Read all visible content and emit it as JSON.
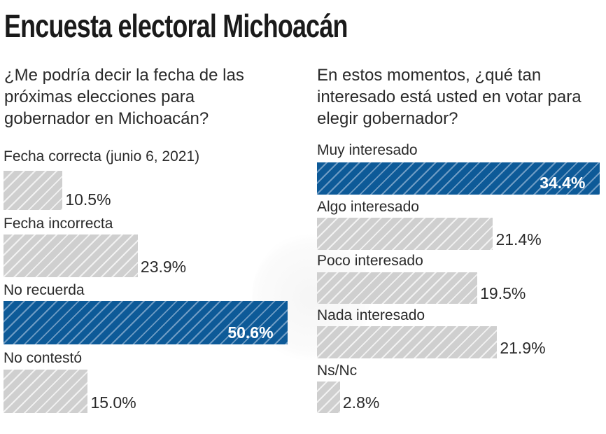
{
  "title": "Encuesta electoral Michoacán",
  "colors": {
    "highlight": "#0d5a98",
    "default": "#cfcfcf"
  },
  "chart_data": [
    {
      "type": "bar",
      "orientation": "horizontal",
      "title": "¿Me podría decir la fecha de las próximas elecciones para gobernador en Michoacán?",
      "categories": [
        "Fecha correcta (junio 6, 2021)",
        "Fecha incorrecta",
        "No recuerda",
        "No contestó"
      ],
      "values": [
        10.5,
        23.9,
        50.6,
        15.0
      ],
      "labels": [
        "10.5%",
        "23.9%",
        "50.6%",
        "15.0%"
      ],
      "highlight": [
        false,
        false,
        true,
        false
      ],
      "unit": "%"
    },
    {
      "type": "bar",
      "orientation": "horizontal",
      "title": "En estos momentos, ¿qué tan interesado está usted en votar para elegir gobernador?",
      "categories": [
        "Muy interesado",
        "Algo interesado",
        "Poco interesado",
        "Nada interesado",
        "Ns/Nc"
      ],
      "values": [
        34.4,
        21.4,
        19.5,
        21.9,
        2.8
      ],
      "labels": [
        "34.4%",
        "21.4%",
        "19.5%",
        "21.9%",
        "2.8%"
      ],
      "highlight": [
        true,
        false,
        false,
        false,
        false
      ],
      "unit": "%"
    }
  ]
}
